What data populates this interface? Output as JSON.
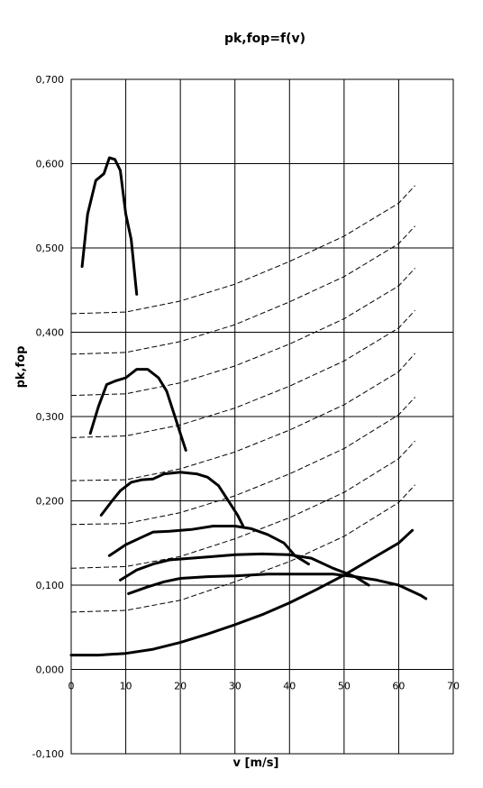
{
  "chart_data": {
    "type": "line",
    "title": "pk,fop=f(v)",
    "xlabel": "v [m/s]",
    "ylabel": "pk,fop",
    "xlim": [
      0,
      70
    ],
    "ylim": [
      -0.1,
      0.7
    ],
    "x_ticks": [
      "0",
      "10",
      "20",
      "30",
      "40",
      "50",
      "60",
      "70"
    ],
    "y_ticks": [
      "-0,100",
      "0,000",
      "0,100",
      "0,200",
      "0,300",
      "0,400",
      "0,500",
      "0,600",
      "0,700"
    ],
    "grid": true,
    "legend": "none",
    "fan_curves": [
      {
        "x": [
          2,
          3,
          4.5,
          6,
          7,
          8,
          9,
          10,
          11,
          12
        ],
        "y": [
          0.478,
          0.54,
          0.58,
          0.588,
          0.607,
          0.605,
          0.592,
          0.54,
          0.51,
          0.445
        ]
      },
      {
        "x": [
          3.5,
          5,
          6.5,
          8,
          10,
          12,
          14,
          16,
          17.5,
          19,
          20,
          21
        ],
        "y": [
          0.28,
          0.312,
          0.338,
          0.342,
          0.346,
          0.356,
          0.356,
          0.346,
          0.33,
          0.3,
          0.28,
          0.26
        ]
      },
      {
        "x": [
          5.5,
          7.5,
          9,
          11,
          13,
          15,
          17,
          20,
          23,
          25,
          27,
          29,
          30.5,
          31.5
        ],
        "y": [
          0.183,
          0.2,
          0.212,
          0.222,
          0.225,
          0.226,
          0.232,
          0.234,
          0.232,
          0.228,
          0.218,
          0.198,
          0.183,
          0.17
        ]
      },
      {
        "x": [
          7,
          10,
          13,
          15,
          18,
          22,
          26,
          30,
          33,
          36,
          39,
          41,
          43.5
        ],
        "y": [
          0.135,
          0.148,
          0.157,
          0.163,
          0.164,
          0.166,
          0.17,
          0.17,
          0.167,
          0.16,
          0.15,
          0.135,
          0.125
        ]
      },
      {
        "x": [
          9,
          12,
          15,
          18,
          22,
          26,
          30,
          35,
          40,
          44,
          48,
          52,
          54.5
        ],
        "y": [
          0.106,
          0.118,
          0.125,
          0.13,
          0.132,
          0.134,
          0.136,
          0.137,
          0.136,
          0.132,
          0.12,
          0.11,
          0.1
        ]
      },
      {
        "x": [
          10.5,
          14,
          17,
          20,
          25,
          30,
          36,
          42,
          48,
          52,
          56,
          60,
          62,
          64,
          65
        ],
        "y": [
          0.09,
          0.098,
          0.104,
          0.108,
          0.11,
          0.111,
          0.113,
          0.113,
          0.113,
          0.11,
          0.106,
          0.1,
          0.094,
          0.088,
          0.084
        ]
      }
    ],
    "system_curve": {
      "x": [
        0,
        5,
        10,
        15,
        20,
        25,
        30,
        35,
        40,
        45,
        50,
        55,
        60,
        62.5
      ],
      "y": [
        0.017,
        0.017,
        0.019,
        0.024,
        0.032,
        0.042,
        0.053,
        0.065,
        0.079,
        0.095,
        0.112,
        0.131,
        0.15,
        0.165
      ]
    },
    "dashed_curves": [
      {
        "x": [
          0,
          10,
          20,
          30,
          40,
          50,
          60,
          63
        ],
        "y": [
          0.068,
          0.07,
          0.082,
          0.104,
          0.128,
          0.158,
          0.198,
          0.219
        ]
      },
      {
        "x": [
          0,
          10,
          20,
          30,
          40,
          50,
          60,
          63
        ],
        "y": [
          0.12,
          0.122,
          0.134,
          0.155,
          0.18,
          0.21,
          0.25,
          0.271
        ]
      },
      {
        "x": [
          0,
          10,
          20,
          30,
          40,
          50,
          60,
          63
        ],
        "y": [
          0.172,
          0.173,
          0.186,
          0.206,
          0.232,
          0.262,
          0.302,
          0.323
        ]
      },
      {
        "x": [
          0,
          10,
          20,
          30,
          40,
          50,
          60,
          63
        ],
        "y": [
          0.224,
          0.225,
          0.238,
          0.258,
          0.284,
          0.314,
          0.353,
          0.375
        ]
      },
      {
        "x": [
          0,
          10,
          20,
          30,
          40,
          50,
          60,
          63
        ],
        "y": [
          0.275,
          0.277,
          0.29,
          0.31,
          0.336,
          0.366,
          0.405,
          0.426
        ]
      },
      {
        "x": [
          0,
          10,
          20,
          30,
          40,
          50,
          60,
          63
        ],
        "y": [
          0.325,
          0.327,
          0.34,
          0.36,
          0.386,
          0.416,
          0.455,
          0.476
        ]
      },
      {
        "x": [
          0,
          10,
          20,
          30,
          40,
          50,
          60,
          63
        ],
        "y": [
          0.374,
          0.376,
          0.389,
          0.409,
          0.436,
          0.466,
          0.505,
          0.526
        ]
      },
      {
        "x": [
          0,
          10,
          20,
          30,
          40,
          50,
          60,
          63
        ],
        "y": [
          0.422,
          0.424,
          0.437,
          0.457,
          0.484,
          0.514,
          0.553,
          0.574
        ]
      }
    ]
  }
}
